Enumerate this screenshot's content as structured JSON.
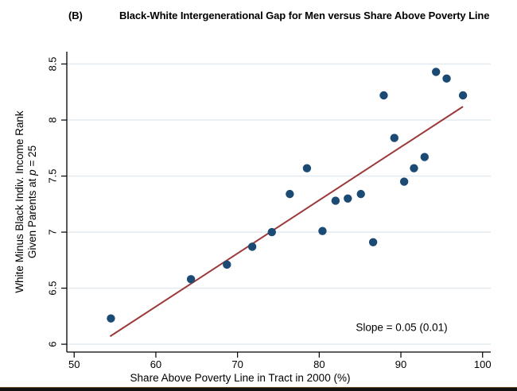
{
  "page": {
    "title_prefix": "(B)",
    "title": "Black-White Intergenerational Gap for Men versus Share Above Poverty Line"
  },
  "chart_data": {
    "type": "scatter",
    "title": "(B) Black-White Intergenerational Gap for Men versus Share Above Poverty Line",
    "xlabel": "Share Above Poverty Line in Tract in 2000 (%)",
    "ylabel": "White Minus Black Indiv. Income Rank Given Parents at p = 25",
    "ylabel_lines": {
      "line1": "White Minus Black Indiv. Income Rank",
      "line2_pre": "Given Parents at ",
      "line2_var": "p",
      "line2_post": " = 25"
    },
    "xlim": [
      49.1,
      101
    ],
    "ylim": [
      5.93,
      8.61
    ],
    "xticks": [
      50,
      60,
      70,
      80,
      90,
      100
    ],
    "yticks": [
      6,
      6.5,
      7,
      7.5,
      8,
      8.5
    ],
    "grid": "horizontal-only",
    "legend": "none",
    "points": [
      [
        54.5,
        6.23
      ],
      [
        64.3,
        6.58
      ],
      [
        68.7,
        6.71
      ],
      [
        71.8,
        6.87
      ],
      [
        74.2,
        7.0
      ],
      [
        76.4,
        7.34
      ],
      [
        78.5,
        7.57
      ],
      [
        80.4,
        7.01
      ],
      [
        82.0,
        7.28
      ],
      [
        83.5,
        7.3
      ],
      [
        85.1,
        7.34
      ],
      [
        86.6,
        6.91
      ],
      [
        87.9,
        8.22
      ],
      [
        89.2,
        7.84
      ],
      [
        90.4,
        7.45
      ],
      [
        91.6,
        7.57
      ],
      [
        92.9,
        7.67
      ],
      [
        94.3,
        8.43
      ],
      [
        95.6,
        8.37
      ],
      [
        97.6,
        8.22
      ]
    ],
    "trend_line": {
      "x1": 54.4,
      "y1": 6.07,
      "x2": 97.6,
      "y2": 8.12
    },
    "annotation": "Slope = 0.05 (0.01)",
    "colors": {
      "marker": "#1b4a74",
      "trend": "#9c3a3b",
      "grid": "#e2eaef",
      "axis": "#000000"
    }
  }
}
